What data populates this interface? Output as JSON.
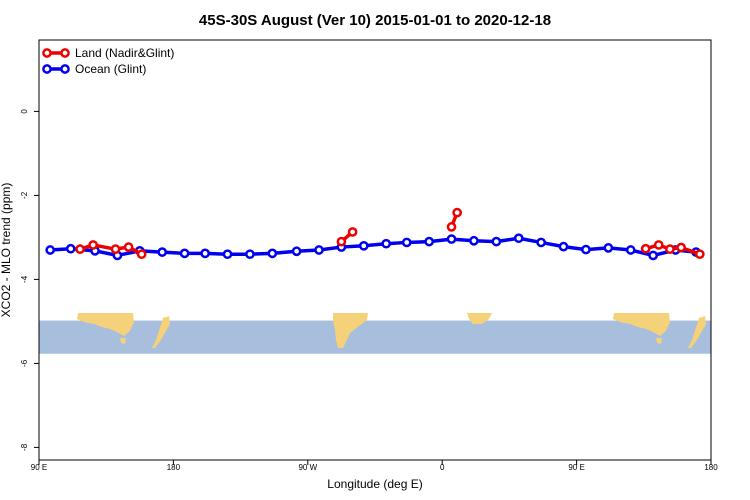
{
  "chart_data": {
    "type": "line",
    "title": "45S-30S August (Ver 10)   2015-01-01 to 2020-12-18",
    "xlabel": "Longitude (deg E)",
    "ylabel": "XCO2 - MLO trend (ppm)",
    "xlim": [
      90,
      450
    ],
    "ylim": [
      -8.3,
      1.7
    ],
    "x_ticks": [
      90,
      162,
      234,
      306,
      378,
      450
    ],
    "x_tick_labels": [
      "90 E",
      "180",
      "90 W",
      "0",
      "90 E",
      "180"
    ],
    "y_ticks": [
      0,
      -2,
      -4,
      -6,
      -8
    ],
    "y_tick_labels": [
      "0",
      "-2",
      "-4",
      "-6",
      "-8"
    ],
    "legend": {
      "placement": "top-left"
    },
    "map_strip": {
      "y_range": [
        -5.77,
        -4.98
      ],
      "ocean_color": "#a7bedd",
      "land_color": "#f5d27a"
    },
    "series": [
      {
        "name": "Land (Nadir&Glint)",
        "color": "#ee0000",
        "segments": [
          {
            "x": [
              112,
              119,
              131,
              138,
              145
            ],
            "y": [
              -3.28,
              -3.18,
              -3.28,
              -3.23,
              -3.4
            ]
          },
          {
            "x": [
              252,
              258
            ],
            "y": [
              -3.1,
              -2.87
            ]
          },
          {
            "x": [
              311,
              314
            ],
            "y": [
              -2.75,
              -2.41
            ]
          },
          {
            "x": [
              415,
              422,
              428,
              434,
              444
            ],
            "y": [
              -3.27,
              -3.18,
              -3.28,
              -3.24,
              -3.4
            ]
          }
        ]
      },
      {
        "name": "Ocean (Glint)",
        "color": "#0000ee",
        "segments": [
          {
            "x": [
              96,
              107,
              120,
              132,
              144,
              156,
              168,
              179,
              191,
              203,
              215,
              228,
              240,
              252,
              264,
              276,
              287,
              299,
              311,
              323,
              335,
              347,
              359,
              371,
              383,
              395,
              407,
              419,
              431,
              442
            ],
            "y": [
              -3.3,
              -3.27,
              -3.32,
              -3.43,
              -3.32,
              -3.35,
              -3.38,
              -3.38,
              -3.4,
              -3.4,
              -3.38,
              -3.33,
              -3.3,
              -3.23,
              -3.2,
              -3.15,
              -3.12,
              -3.1,
              -3.04,
              -3.08,
              -3.1,
              -3.02,
              -3.12,
              -3.22,
              -3.29,
              -3.25,
              -3.3,
              -3.43,
              -3.3,
              -3.35
            ]
          }
        ]
      }
    ]
  }
}
